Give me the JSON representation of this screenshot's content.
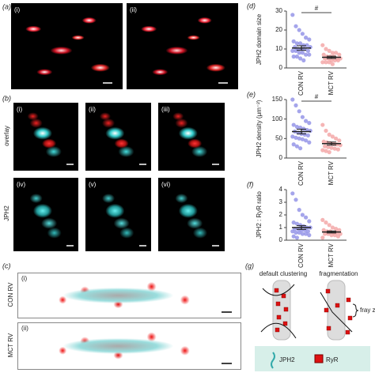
{
  "panels": {
    "a": {
      "label": "(a)",
      "images": [
        "(i)",
        "(ii)"
      ]
    },
    "b": {
      "label": "(b)",
      "row_labels": [
        "overlay",
        "JPH2"
      ],
      "images": [
        "(i)",
        "(ii)",
        "(iii)",
        "(iv)",
        "(v)",
        "(vi)"
      ]
    },
    "c": {
      "label": "(c)",
      "rows": [
        "CON RV",
        "MCT RV"
      ],
      "images": [
        "(i)",
        "(ii)"
      ]
    },
    "g": {
      "label": "(g)",
      "columns": [
        "default clustering",
        "fragmentation"
      ],
      "annotation": "fray zone",
      "legend": [
        "JPH2",
        "RyR"
      ]
    }
  },
  "chart_data": [
    {
      "type": "strip",
      "panel_label": "(d)",
      "y_label": "JPH2 domain size",
      "categories": [
        "CON RV",
        "MCT RV"
      ],
      "colors": [
        "#8f8fe6",
        "#f2a3a3"
      ],
      "values": [
        [
          28,
          22,
          20,
          18,
          16,
          15,
          14,
          13,
          13,
          12,
          12,
          11,
          11,
          10,
          10,
          10,
          9,
          9,
          9,
          8,
          8,
          7,
          7,
          6,
          6,
          5,
          4
        ],
        [
          12,
          10,
          9,
          8,
          8,
          7,
          7,
          6,
          6,
          6,
          5,
          5,
          5,
          5,
          4,
          4,
          4,
          3,
          3,
          3,
          2
        ]
      ],
      "means": [
        10.5,
        5.6
      ],
      "errors": [
        1.2,
        0.6
      ],
      "ylim": [
        0,
        30
      ],
      "yticks": [
        0,
        10,
        20,
        30
      ],
      "annotation": "#"
    },
    {
      "type": "strip",
      "panel_label": "(e)",
      "y_label": "JPH2 density (μm⁻²)",
      "categories": [
        "CON RV",
        "MCT RV"
      ],
      "colors": [
        "#8f8fe6",
        "#f2a3a3"
      ],
      "values": [
        [
          150,
          135,
          120,
          105,
          95,
          90,
          85,
          80,
          78,
          75,
          72,
          70,
          68,
          65,
          62,
          60,
          58,
          55,
          52,
          50,
          48,
          45,
          40,
          35,
          30,
          25
        ],
        [
          85,
          70,
          60,
          55,
          50,
          45,
          42,
          40,
          38,
          36,
          35,
          33,
          30,
          28,
          26,
          24,
          22,
          20,
          18,
          15
        ]
      ],
      "means": [
        68,
        37
      ],
      "errors": [
        6,
        4
      ],
      "ylim": [
        0,
        150
      ],
      "yticks": [
        0,
        50,
        100,
        150
      ],
      "annotation": "#"
    },
    {
      "type": "strip",
      "panel_label": "(f)",
      "y_label": "JPH2 : RyR ratio",
      "categories": [
        "CON RV",
        "MCT RV"
      ],
      "colors": [
        "#8f8fe6",
        "#f2a3a3"
      ],
      "values": [
        [
          3.7,
          3.2,
          2.4,
          2.0,
          1.8,
          1.5,
          1.4,
          1.3,
          1.2,
          1.1,
          1.0,
          1.0,
          0.9,
          0.9,
          0.8,
          0.8,
          0.7,
          0.7,
          0.6,
          0.6,
          0.5,
          0.5,
          0.4,
          0.3,
          0.2
        ],
        [
          1.6,
          1.4,
          1.2,
          1.0,
          0.9,
          0.8,
          0.8,
          0.7,
          0.7,
          0.6,
          0.6,
          0.5,
          0.5,
          0.5,
          0.4,
          0.4,
          0.3,
          0.2
        ]
      ],
      "means": [
        1.0,
        0.65
      ],
      "errors": [
        0.15,
        0.08
      ],
      "ylim": [
        0,
        4
      ],
      "yticks": [
        0,
        1,
        2,
        3,
        4
      ]
    }
  ]
}
